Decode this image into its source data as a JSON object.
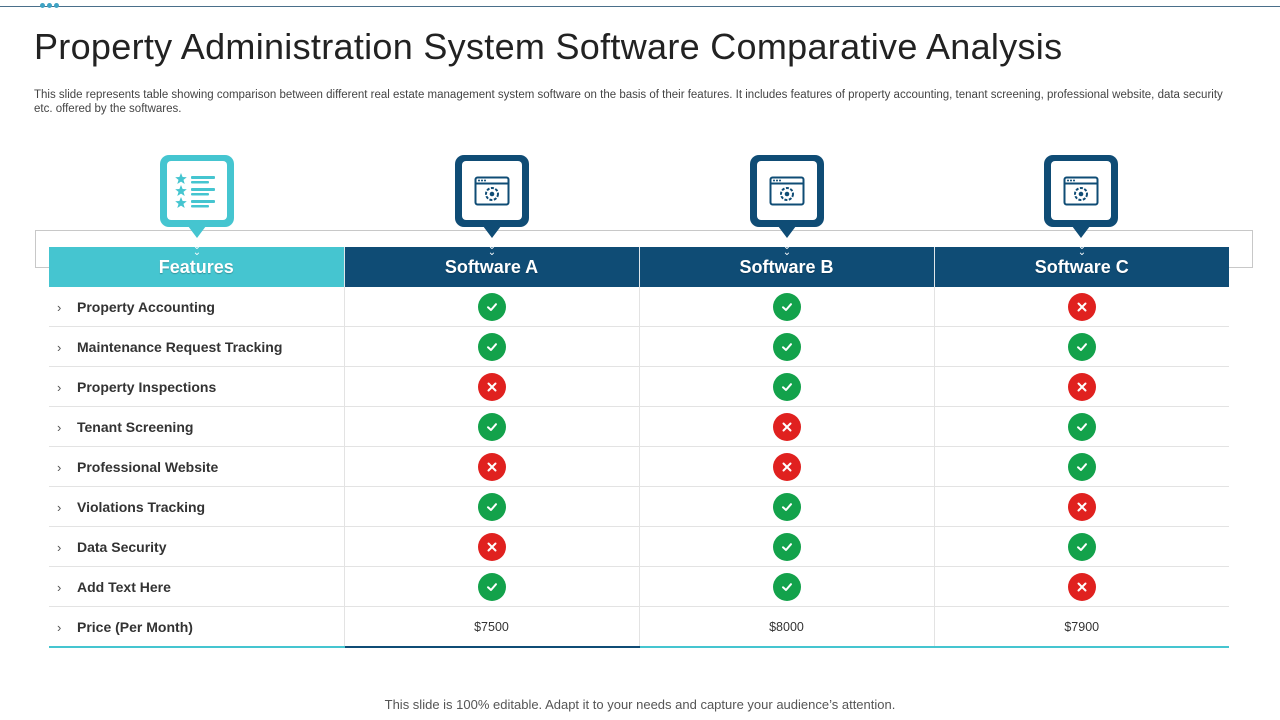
{
  "header": {
    "title": "Property Administration System Software Comparative Analysis",
    "description": "This slide represents table showing comparison between different real estate management system software on the basis of their features. It includes features of property accounting, tenant screening, professional website, data security etc. offered by the softwares."
  },
  "table": {
    "columns": [
      "Features",
      "Software A",
      "Software B",
      "Software C"
    ],
    "rows": [
      {
        "feature": "Property Accounting",
        "a": "yes",
        "b": "yes",
        "c": "no"
      },
      {
        "feature": "Maintenance Request Tracking",
        "a": "yes",
        "b": "yes",
        "c": "yes"
      },
      {
        "feature": "Property Inspections",
        "a": "no",
        "b": "yes",
        "c": "no"
      },
      {
        "feature": "Tenant Screening",
        "a": "yes",
        "b": "no",
        "c": "yes"
      },
      {
        "feature": "Professional Website",
        "a": "no",
        "b": "no",
        "c": "yes"
      },
      {
        "feature": "Violations Tracking",
        "a": "yes",
        "b": "yes",
        "c": "no"
      },
      {
        "feature": "Data Security",
        "a": "no",
        "b": "yes",
        "c": "yes"
      },
      {
        "feature": "Add Text Here",
        "a": "yes",
        "b": "yes",
        "c": "no"
      }
    ],
    "price_row": {
      "feature": "Price (Per Month)",
      "a": "$7500",
      "b": "$8000",
      "c": "$7900"
    }
  },
  "icons": {
    "features_pin": "feature-list-icon",
    "software_pin": "browser-settings-icon",
    "yes": "check-icon",
    "no": "cross-icon",
    "row_marker": "chevron-right-icon"
  },
  "colors": {
    "features_header": "#45c5d0",
    "software_header": "#0f4c75",
    "yes": "#13a24b",
    "no": "#e0211f"
  },
  "footer": {
    "note": "This slide is 100% editable. Adapt it to your needs and capture your audience’s attention."
  }
}
